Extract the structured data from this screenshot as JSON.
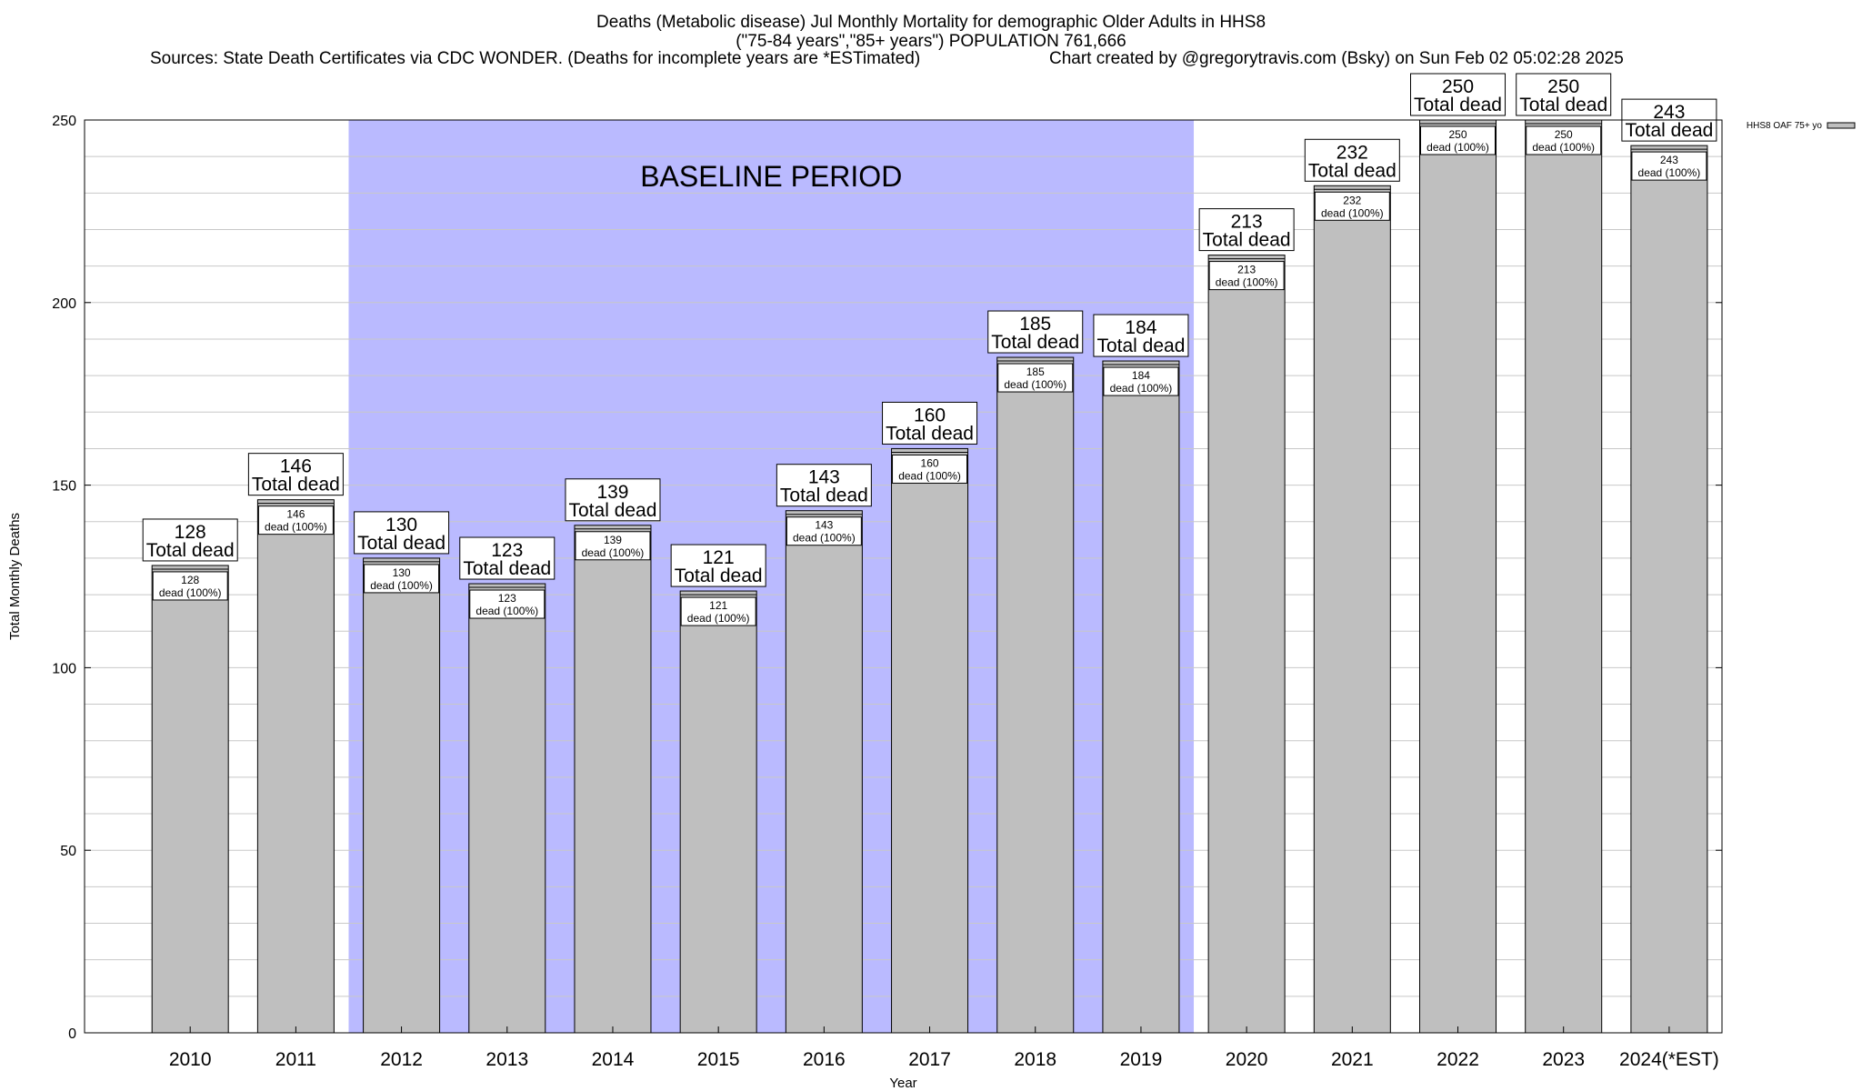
{
  "header": {
    "title_line1": "Deaths (Metabolic disease) Jul Monthly Mortality for demographic Older Adults in HHS8",
    "title_line2": "(\"75-84 years\",\"85+ years\") POPULATION 761,666",
    "sources": "Sources: State Death Certificates via CDC WONDER. (Deaths for incomplete years are *ESTimated)",
    "credit": "Chart created by @gregorytravis.com (Bsky) on Sun Feb 02 05:02:28 2025"
  },
  "chart_data": {
    "type": "bar",
    "title": "Deaths (Metabolic disease) Jul Monthly Mortality for demographic Older Adults in HHS8",
    "xlabel": "Year",
    "ylabel": "Total Monthly Deaths",
    "ylim": [
      0,
      250
    ],
    "yticks": [
      0,
      50,
      100,
      150,
      200,
      250
    ],
    "grid": true,
    "legend": {
      "position": "top-right",
      "label": "HHS8 OAF 75+ yo"
    },
    "baseline": {
      "label": "BASELINE PERIOD",
      "from": "2012",
      "to": "2019"
    },
    "total_suffix": "Total dead",
    "inner_suffix": "dead (100%)",
    "categories": [
      "2010",
      "2011",
      "2012",
      "2013",
      "2014",
      "2015",
      "2016",
      "2017",
      "2018",
      "2019",
      "2020",
      "2021",
      "2022",
      "2023",
      "2024(*EST)"
    ],
    "series": [
      {
        "name": "HHS8 OAF 75+ yo",
        "values": [
          128,
          146,
          130,
          123,
          139,
          121,
          143,
          160,
          185,
          184,
          213,
          232,
          250,
          250,
          243
        ]
      }
    ]
  }
}
